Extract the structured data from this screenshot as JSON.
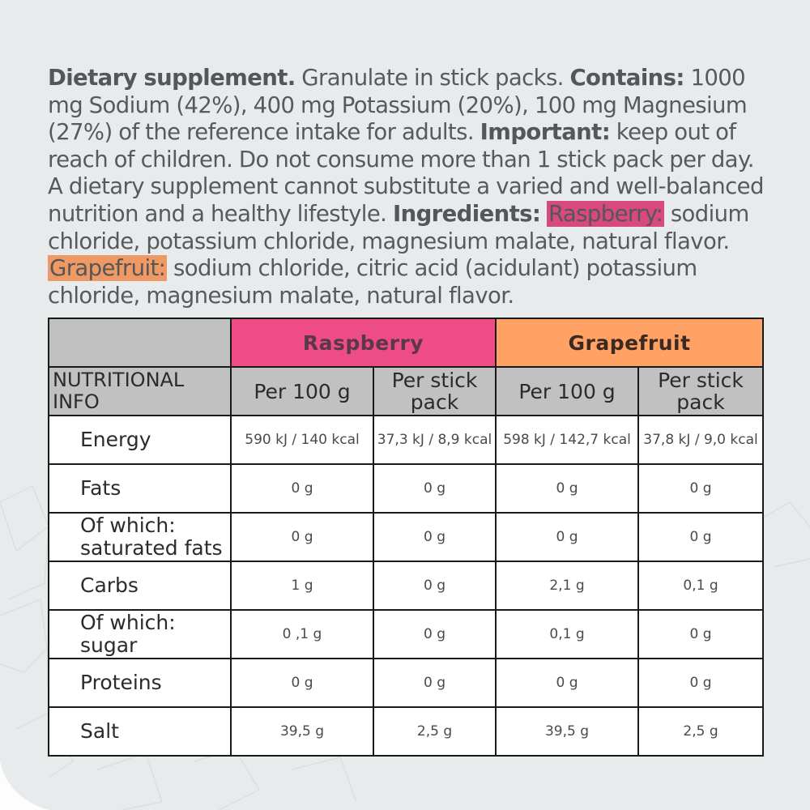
{
  "intro": {
    "s1_bold": "Dietary supplement.",
    "s1_text": " Granulate in stick packs. ",
    "s2_bold": "Contains:",
    "s2_text": " 1000 mg Sodium (42%), 400 mg Potassium (20%), 100 mg Magnesium (27%) of the reference intake for adults. ",
    "s3_bold": "Important:",
    "s3_text": " keep out of reach of children. Do not consume more than 1 stick pack per day. A dietary supplement cannot substitute a varied and well-balanced nutrition and a healthy lifestyle. ",
    "s4_bold": "Ingredients:",
    "raspberry_label": "Raspberry:",
    "raspberry_text": " sodium chloride, potassium chloride, magnesium malate, natural flavor. ",
    "grapefruit_label": "Grapefruit:",
    "grapefruit_text": " sodium chloride, citric acid (acidulant) potassium chloride, magnesium malate, natural flavor."
  },
  "colors": {
    "raspberry": "#ee4c85",
    "grapefruit": "#ffa263",
    "header_gray": "#c1c1c1",
    "background": "#e8ebec"
  },
  "table": {
    "brand_raspberry": "Raspberry",
    "brand_grapefruit": "Grapefruit",
    "header_label": "NUTRITIONAL INFO",
    "col_per100": "Per 100 g",
    "col_perstick": "Per stick pack",
    "rows": [
      {
        "name": "Energy",
        "r100": "590 kJ / 140 kcal",
        "rstick": "37,3 kJ / 8,9 kcal",
        "g100": "598 kJ / 142,7 kcal",
        "gstick": "37,8 kJ / 9,0 kcal"
      },
      {
        "name": "Fats",
        "r100": "0 g",
        "rstick": "0 g",
        "g100": "0 g",
        "gstick": "0 g"
      },
      {
        "name": "Of which: saturated fats",
        "r100": "0 g",
        "rstick": "0 g",
        "g100": "0 g",
        "gstick": "0 g"
      },
      {
        "name": "Carbs",
        "r100": "1 g",
        "rstick": "0 g",
        "g100": "2,1 g",
        "gstick": "0,1 g"
      },
      {
        "name": "Of which: sugar",
        "r100": "0 ,1 g",
        "rstick": "0 g",
        "g100": "0,1 g",
        "gstick": "0 g"
      },
      {
        "name": "Proteins",
        "r100": "0 g",
        "rstick": "0 g",
        "g100": "0 g",
        "gstick": "0 g"
      },
      {
        "name": "Salt",
        "r100": "39,5 g",
        "rstick": "2,5 g",
        "g100": "39,5 g",
        "gstick": "2,5 g"
      }
    ]
  }
}
